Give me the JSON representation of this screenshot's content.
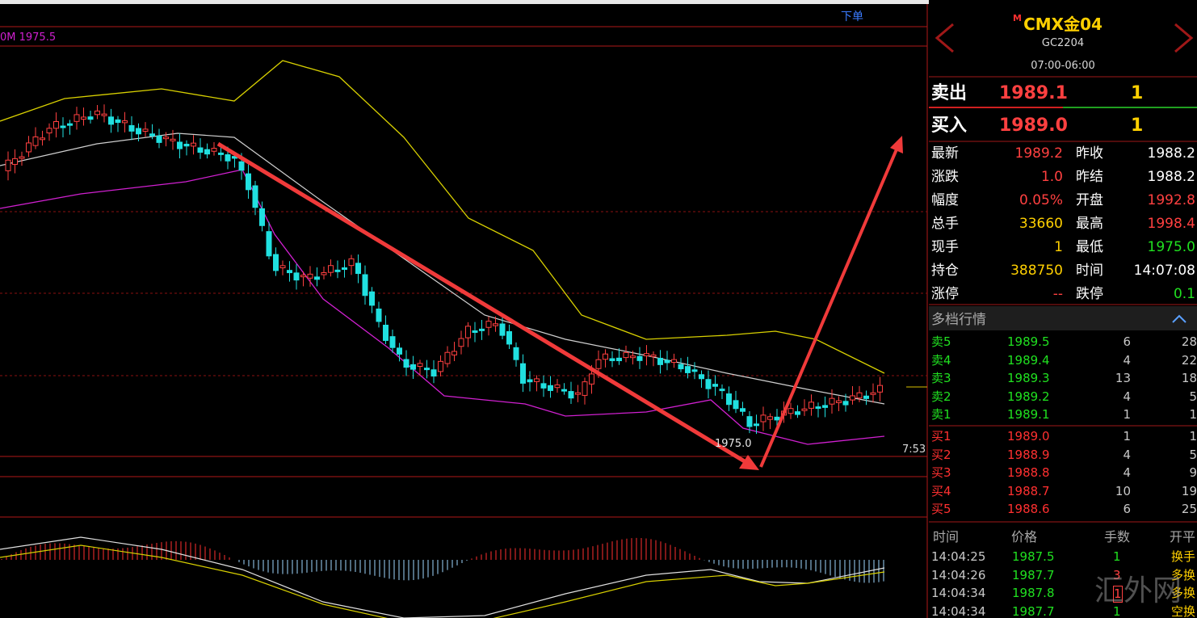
{
  "chart": {
    "order_button": "下单",
    "ma_label": "0M 1975.5",
    "low_label": "1975.0",
    "time_label": "7:53"
  },
  "quote": {
    "market_mark": "M",
    "symbol": "CMX金04",
    "code": "GC2204",
    "session": "07:00-06:00",
    "ask": {
      "label": "卖出",
      "price": "1989.1",
      "qty": "1"
    },
    "bid": {
      "label": "买入",
      "price": "1989.0",
      "qty": "1"
    },
    "stats": [
      [
        "最新",
        "1989.2",
        "昨收",
        "1988.2"
      ],
      [
        "涨跌",
        "1.0",
        "昨结",
        "1988.2"
      ],
      [
        "幅度",
        "0.05%",
        "开盘",
        "1992.8"
      ],
      [
        "总手",
        "33660",
        "最高",
        "1998.4"
      ],
      [
        "现手",
        "1",
        "最低",
        "1975.0"
      ],
      [
        "持仓",
        "388750",
        "时间",
        "14:07:08"
      ],
      [
        "涨停",
        "--",
        "跌停",
        "0.1"
      ]
    ],
    "depth_title": "多档行情",
    "asks": [
      [
        "卖5",
        "1989.5",
        "6",
        "28"
      ],
      [
        "卖4",
        "1989.4",
        "4",
        "22"
      ],
      [
        "卖3",
        "1989.3",
        "13",
        "18"
      ],
      [
        "卖2",
        "1989.2",
        "4",
        "5"
      ],
      [
        "卖1",
        "1989.1",
        "1",
        "1"
      ]
    ],
    "bids": [
      [
        "买1",
        "1989.0",
        "1",
        "1"
      ],
      [
        "买2",
        "1988.9",
        "4",
        "5"
      ],
      [
        "买3",
        "1988.8",
        "4",
        "9"
      ],
      [
        "买4",
        "1988.7",
        "10",
        "19"
      ],
      [
        "买5",
        "1988.6",
        "6",
        "25"
      ]
    ],
    "trades_header": [
      "时间",
      "价格",
      "手数",
      "开平"
    ],
    "trades": [
      [
        "14:04:25",
        "1987.5",
        "1",
        "换手"
      ],
      [
        "14:04:26",
        "1987.7",
        "3",
        "多换"
      ],
      [
        "14:04:34",
        "1987.8",
        "1",
        "多换"
      ],
      [
        "14:04:34",
        "1987.7",
        "1",
        "空换"
      ]
    ]
  },
  "watermark": "汇外网"
}
